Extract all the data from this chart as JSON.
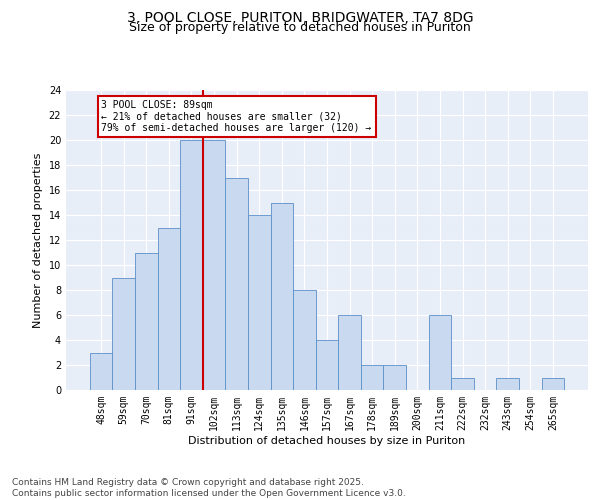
{
  "title_line1": "3, POOL CLOSE, PURITON, BRIDGWATER, TA7 8DG",
  "title_line2": "Size of property relative to detached houses in Puriton",
  "xlabel": "Distribution of detached houses by size in Puriton",
  "ylabel": "Number of detached properties",
  "categories": [
    "48sqm",
    "59sqm",
    "70sqm",
    "81sqm",
    "91sqm",
    "102sqm",
    "113sqm",
    "124sqm",
    "135sqm",
    "146sqm",
    "157sqm",
    "167sqm",
    "178sqm",
    "189sqm",
    "200sqm",
    "211sqm",
    "222sqm",
    "232sqm",
    "243sqm",
    "254sqm",
    "265sqm"
  ],
  "values": [
    3,
    9,
    11,
    13,
    20,
    20,
    17,
    14,
    15,
    8,
    4,
    6,
    2,
    2,
    0,
    6,
    1,
    0,
    1,
    0,
    1
  ],
  "bar_color": "#c9d9f0",
  "bar_edge_color": "#5b8fc9",
  "red_line_index": 4,
  "annotation_text": "3 POOL CLOSE: 89sqm\n← 21% of detached houses are smaller (32)\n79% of semi-detached houses are larger (120) →",
  "annotation_box_color": "#ffffff",
  "annotation_box_edge": "#cc0000",
  "red_line_color": "#cc0000",
  "ylim": [
    0,
    24
  ],
  "yticks": [
    0,
    2,
    4,
    6,
    8,
    10,
    12,
    14,
    16,
    18,
    20,
    22,
    24
  ],
  "footer_line1": "Contains HM Land Registry data © Crown copyright and database right 2025.",
  "footer_line2": "Contains public sector information licensed under the Open Government Licence v3.0.",
  "bg_color": "#e8eef8",
  "grid_color": "#ffffff",
  "title_fontsize": 10,
  "subtitle_fontsize": 9,
  "axis_label_fontsize": 8,
  "tick_fontsize": 7,
  "footer_fontsize": 6.5
}
